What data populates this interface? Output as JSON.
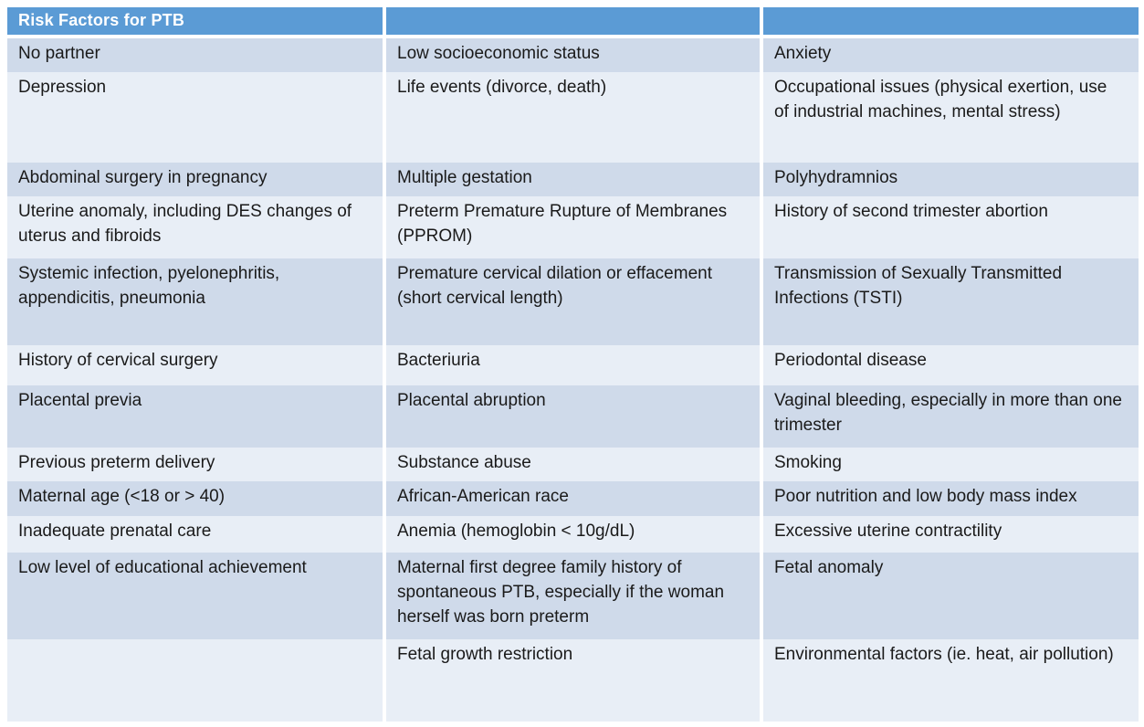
{
  "colors": {
    "header_bg": "#5B9BD5",
    "header_text": "#FFFFFF",
    "row_dark": "#CFDAEA",
    "row_light": "#E8EEF6",
    "body_text": "#1A1A1A",
    "separator": "#FFFFFF",
    "page_bg": "#FFFFFF"
  },
  "table": {
    "title": "Risk Factors for PTB",
    "header": [
      "Risk Factors for PTB",
      "",
      ""
    ],
    "rows": [
      [
        "No partner",
        "Low socioeconomic status",
        "Anxiety"
      ],
      [
        "Depression",
        "Life events (divorce, death)",
        "Occupational issues (physical exertion, use of industrial machines, mental stress)"
      ],
      [
        "Abdominal surgery in pregnancy",
        "Multiple gestation",
        "Polyhydramnios"
      ],
      [
        "Uterine anomaly, including DES changes of uterus and fibroids",
        "Preterm Premature Rupture of Membranes (PPROM)",
        "History of second trimester abortion"
      ],
      [
        "Systemic infection, pyelonephritis, appendicitis, pneumonia",
        "Premature cervical dilation or effacement (short cervical length)",
        "Transmission of Sexually Transmitted Infections (TSTI)"
      ],
      [
        "History of cervical surgery",
        "Bacteriuria",
        "Periodontal disease"
      ],
      [
        "Placental previa",
        "Placental abruption",
        "Vaginal bleeding, especially in more than one trimester"
      ],
      [
        "Previous preterm delivery",
        "Substance abuse",
        "Smoking"
      ],
      [
        "Maternal age (<18 or > 40)",
        "African-American race",
        "Poor nutrition and low body mass index"
      ],
      [
        "Inadequate prenatal care",
        "Anemia (hemoglobin < 10g/dL)",
        "Excessive uterine contractility"
      ],
      [
        "Low level of educational achievement",
        "Maternal first degree family history of spontaneous PTB, especially if the woman herself was born preterm",
        "Fetal anomaly"
      ],
      [
        "",
        "Fetal growth restriction",
        "Environmental factors (ie. heat, air pollution)"
      ]
    ]
  }
}
